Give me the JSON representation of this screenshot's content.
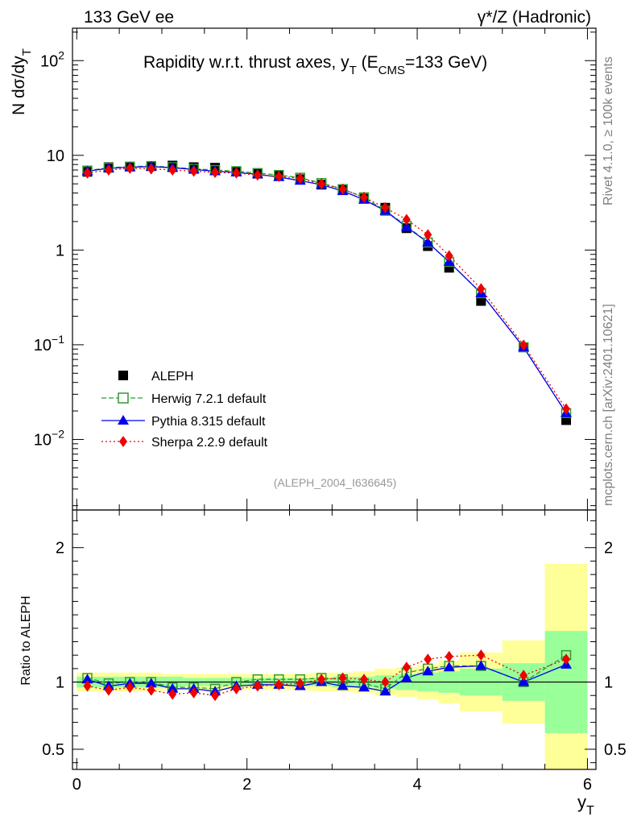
{
  "header": {
    "left": "133 GeV ee",
    "right": "γ*/Z (Hadronic)"
  },
  "side_labels": {
    "rivet": "Rivet 4.1.0, ≥ 100k events",
    "mcplots": "mcplots.cern.ch [arXiv:2401.10621]"
  },
  "analysis_tag": "(ALEPH_2004_I636645)",
  "colors": {
    "data": "#000000",
    "herwig": "#339933",
    "pythia": "#0000ee",
    "sherpa": "#ee0000",
    "band_inner": "#99ff99",
    "band_outer": "#ffff99",
    "tag_text": "#999999"
  },
  "chart_data": [
    {
      "type": "scatter",
      "scale": "log",
      "title": "Rapidity w.r.t. thrust axes, y_T (E_CMS=133 GeV)",
      "title_parts": {
        "main": "Rapidity w.r.t. thrust axes, y",
        "sub1": "T",
        "mid": " (E",
        "sub2": "CMS",
        "end": "=133 GeV)"
      },
      "ylabel": "N  dσ/dy_T",
      "ylabel_parts": {
        "main": "N  dσ/dy",
        "sub": "T"
      },
      "xlim": [
        -0.05,
        6.1
      ],
      "ylim": [
        0.0018,
        220
      ],
      "y_ticks": [
        {
          "v": 0.01,
          "base": "10",
          "exp": "−2",
          "label": ""
        },
        {
          "v": 0.1,
          "base": "10",
          "exp": "−1",
          "label": ""
        },
        {
          "v": 1,
          "base": "",
          "exp": "",
          "label": "1"
        },
        {
          "v": 10,
          "base": "",
          "exp": "",
          "label": "10"
        },
        {
          "v": 100,
          "base": "10",
          "exp": "2",
          "label": ""
        }
      ],
      "x": [
        0.125,
        0.375,
        0.625,
        0.875,
        1.125,
        1.375,
        1.625,
        1.875,
        2.125,
        2.375,
        2.625,
        2.875,
        3.125,
        3.375,
        3.625,
        3.875,
        4.125,
        4.375,
        4.75,
        5.25,
        5.75
      ],
      "series": [
        {
          "name": "ALEPH",
          "key": "data",
          "marker": "square",
          "values": [
            6.7,
            7.5,
            7.6,
            7.7,
            7.8,
            7.5,
            7.4,
            6.8,
            6.4,
            6.1,
            5.6,
            4.9,
            4.3,
            3.5,
            2.8,
            1.7,
            1.1,
            0.65,
            0.29,
            0.094,
            0.016
          ]
        },
        {
          "name": "Herwig 7.2.1 default",
          "key": "herwig",
          "marker": "open-square",
          "dash": "6,3",
          "values": [
            6.9,
            7.4,
            7.6,
            7.7,
            7.5,
            7.2,
            7.0,
            6.8,
            6.5,
            6.2,
            5.8,
            5.1,
            4.4,
            3.6,
            2.6,
            1.8,
            1.2,
            0.75,
            0.35,
            0.094,
            0.019
          ]
        },
        {
          "name": "Pythia 8.315 default",
          "key": "pythia",
          "marker": "triangle",
          "dash": "",
          "values": [
            6.8,
            7.3,
            7.5,
            7.6,
            7.4,
            7.1,
            6.8,
            6.6,
            6.3,
            5.9,
            5.4,
            4.9,
            4.2,
            3.4,
            2.6,
            1.75,
            1.2,
            0.75,
            0.35,
            0.094,
            0.019
          ]
        },
        {
          "name": "Sherpa 2.2.9 default",
          "key": "sherpa",
          "marker": "diamond",
          "dash": "2,3",
          "values": [
            6.5,
            7.0,
            7.3,
            7.2,
            7.0,
            6.8,
            6.6,
            6.5,
            6.2,
            6.0,
            5.7,
            5.0,
            4.4,
            3.6,
            2.8,
            2.1,
            1.45,
            0.87,
            0.39,
            0.099,
            0.021
          ]
        }
      ],
      "legend": {
        "placement": "bottom-left",
        "entries": [
          "ALEPH",
          "Herwig 7.2.1 default",
          "Pythia 8.315 default",
          "Sherpa 2.2.9 default"
        ]
      }
    },
    {
      "type": "scatter",
      "scale": "linear",
      "ylabel": "Ratio to ALEPH",
      "xlabel": "y_T",
      "xlabel_parts": {
        "main": "y",
        "sub": "T"
      },
      "xlim": [
        -0.05,
        6.1
      ],
      "ylim": [
        0.35,
        2.28
      ],
      "x_ticks": [
        0,
        2,
        4,
        6
      ],
      "y_ticks": [
        {
          "v": 0.5,
          "label": "0.5"
        },
        {
          "v": 1,
          "label": "1"
        },
        {
          "v": 2,
          "label": "2"
        }
      ],
      "bins": [
        [
          0,
          0.25
        ],
        [
          0.25,
          0.5
        ],
        [
          0.5,
          0.75
        ],
        [
          0.75,
          1.0
        ],
        [
          1.0,
          1.25
        ],
        [
          1.25,
          1.5
        ],
        [
          1.5,
          1.75
        ],
        [
          1.75,
          2.0
        ],
        [
          2.0,
          2.25
        ],
        [
          2.25,
          2.5
        ],
        [
          2.5,
          2.75
        ],
        [
          2.75,
          3.0
        ],
        [
          3.0,
          3.25
        ],
        [
          3.25,
          3.5
        ],
        [
          3.5,
          3.75
        ],
        [
          3.75,
          4.0
        ],
        [
          4.0,
          4.25
        ],
        [
          4.25,
          4.5
        ],
        [
          4.5,
          5.0
        ],
        [
          5.0,
          5.5
        ],
        [
          5.5,
          6.0
        ]
      ],
      "band_inner": [
        0.04,
        0.04,
        0.04,
        0.04,
        0.04,
        0.03,
        0.03,
        0.03,
        0.03,
        0.03,
        0.03,
        0.03,
        0.04,
        0.04,
        0.05,
        0.06,
        0.07,
        0.08,
        0.1,
        0.14,
        0.38
      ],
      "band_outer": [
        0.07,
        0.07,
        0.07,
        0.07,
        0.06,
        0.06,
        0.06,
        0.06,
        0.06,
        0.06,
        0.06,
        0.07,
        0.07,
        0.08,
        0.1,
        0.11,
        0.13,
        0.16,
        0.22,
        0.31,
        0.88
      ],
      "reference": 1,
      "series": [
        {
          "name": "Herwig 7.2.1 default",
          "key": "herwig",
          "values": [
            1.03,
            0.99,
            1.0,
            1.0,
            0.96,
            0.96,
            0.95,
            1.0,
            1.02,
            1.02,
            1.02,
            1.03,
            1.02,
            0.99,
            0.95,
            1.07,
            1.1,
            1.12,
            1.12,
            1.0,
            1.2
          ]
        },
        {
          "name": "Pythia 8.315 default",
          "key": "pythia",
          "values": [
            1.02,
            0.97,
            0.99,
            0.99,
            0.95,
            0.95,
            0.93,
            0.97,
            0.98,
            0.98,
            0.97,
            1.0,
            0.97,
            0.96,
            0.93,
            1.03,
            1.08,
            1.11,
            1.12,
            1.0,
            1.13
          ]
        },
        {
          "name": "Sherpa 2.2.9 default",
          "key": "sherpa",
          "values": [
            0.97,
            0.94,
            0.96,
            0.94,
            0.91,
            0.92,
            0.9,
            0.95,
            0.97,
            0.98,
            0.99,
            1.02,
            1.03,
            1.02,
            1.0,
            1.11,
            1.17,
            1.19,
            1.2,
            1.05,
            1.17
          ]
        }
      ]
    }
  ]
}
